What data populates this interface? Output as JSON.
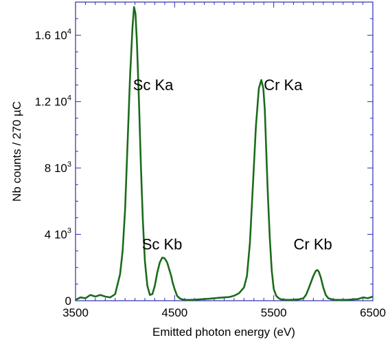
{
  "chart_data": {
    "type": "line",
    "title": "",
    "xlabel": "Emitted photon energy (eV)",
    "ylabel": "Nb counts / 270 µC",
    "xlim": [
      3500,
      6500
    ],
    "ylim": [
      0,
      18000
    ],
    "grid": false,
    "legend": "none",
    "line_color": "#1a6b1a",
    "frame_color": "#2b2bb0",
    "x_ticks": [
      {
        "value": 3500,
        "label": "3500"
      },
      {
        "value": 4500,
        "label": "4500"
      },
      {
        "value": 5500,
        "label": "5500"
      },
      {
        "value": 6500,
        "label": "6500"
      }
    ],
    "y_ticks": [
      {
        "value": 0,
        "base": "0",
        "exp": ""
      },
      {
        "value": 4000,
        "base": "4 10",
        "exp": "3"
      },
      {
        "value": 8000,
        "base": "8 10",
        "exp": "3"
      },
      {
        "value": 12000,
        "base": "1.2 10",
        "exp": "4"
      },
      {
        "value": 16000,
        "base": "1.6 10",
        "exp": "4"
      }
    ],
    "annotations": [
      {
        "text": "Sc K",
        "greek": "a",
        "x": 4080,
        "y": 12700
      },
      {
        "text": "Cr K",
        "greek": "a",
        "x": 5400,
        "y": 12700
      },
      {
        "text": "Sc K",
        "greek": "b",
        "x": 4170,
        "y": 3100
      },
      {
        "text": "Cr K",
        "greek": "b",
        "x": 5700,
        "y": 3100
      }
    ],
    "series": [
      {
        "x": [
          3500,
          3550,
          3600,
          3650,
          3700,
          3750,
          3800,
          3850,
          3900,
          3950,
          3975,
          4000,
          4025,
          4050,
          4075,
          4090,
          4105,
          4120,
          4140,
          4160,
          4180,
          4200,
          4225,
          4250,
          4275,
          4300,
          4325,
          4350,
          4375,
          4400,
          4425,
          4450,
          4465,
          4480,
          4500,
          4525,
          4550,
          4575,
          4600,
          4625,
          4650,
          4700,
          4750,
          4800,
          4850,
          4900,
          4950,
          5000,
          5050,
          5100,
          5150,
          5200,
          5230,
          5260,
          5290,
          5320,
          5350,
          5375,
          5395,
          5410,
          5425,
          5440,
          5460,
          5480,
          5500,
          5525,
          5550,
          5575,
          5600,
          5650,
          5700,
          5750,
          5800,
          5825,
          5850,
          5875,
          5900,
          5925,
          5940,
          5955,
          5975,
          6000,
          6025,
          6050,
          6100,
          6150,
          6200,
          6250,
          6300,
          6350,
          6400,
          6450,
          6500
        ],
        "y": [
          50,
          200,
          150,
          350,
          250,
          350,
          250,
          200,
          400,
          1600,
          3000,
          5500,
          9500,
          13500,
          16500,
          17700,
          17300,
          15500,
          12000,
          8000,
          4800,
          2400,
          900,
          350,
          400,
          900,
          1700,
          2300,
          2600,
          2550,
          2300,
          1800,
          1500,
          1100,
          700,
          300,
          150,
          80,
          60,
          50,
          50,
          60,
          80,
          100,
          120,
          150,
          180,
          200,
          220,
          300,
          450,
          800,
          1500,
          3500,
          7000,
          10500,
          12800,
          13300,
          12800,
          11500,
          9000,
          6500,
          3800,
          1800,
          700,
          300,
          150,
          80,
          60,
          50,
          60,
          80,
          150,
          350,
          700,
          1100,
          1500,
          1800,
          1850,
          1750,
          1400,
          800,
          350,
          150,
          60,
          50,
          50,
          60,
          80,
          100,
          200,
          150,
          250
        ]
      }
    ]
  }
}
